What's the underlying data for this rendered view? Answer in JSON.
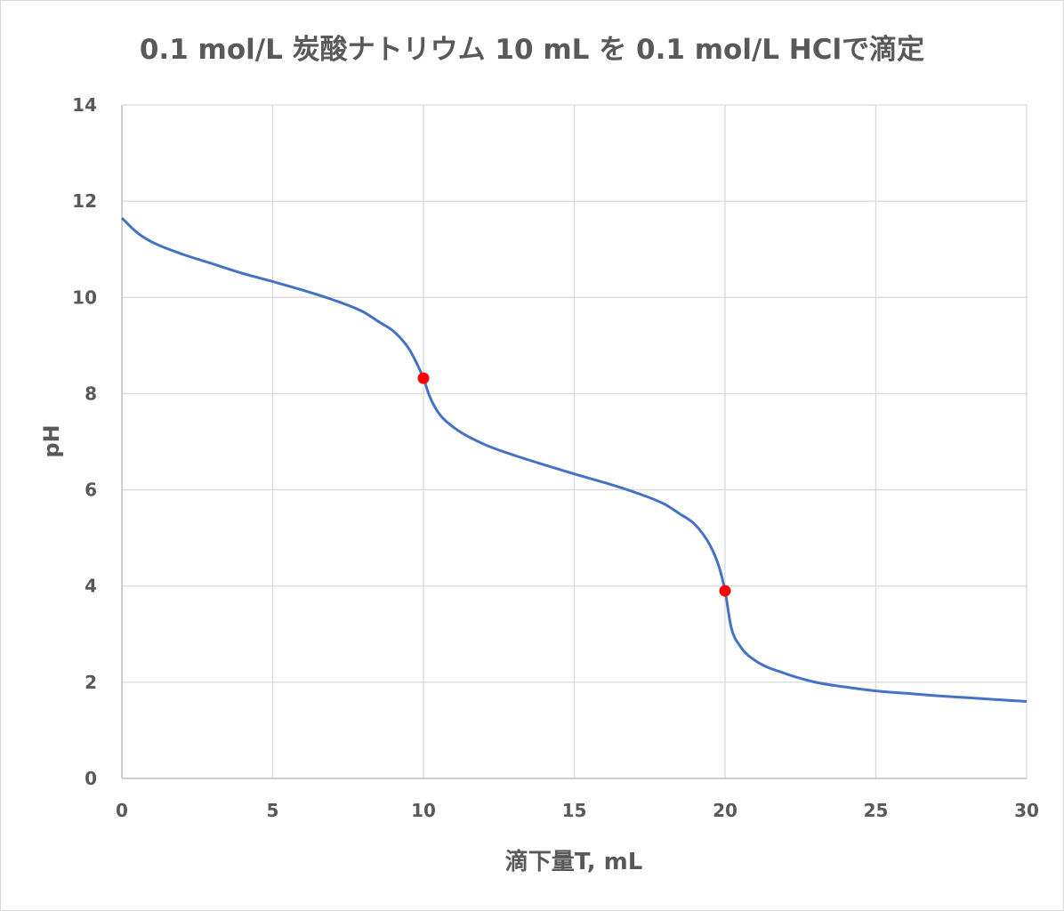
{
  "chart_data": {
    "type": "line",
    "title": "0.1 mol/L 炭酸ナトリウム 10 mL を 0.1 mol/L HClで滴定",
    "xlabel": "滴下量T, mL",
    "ylabel": "pH",
    "xlim": [
      0,
      30
    ],
    "ylim": [
      0,
      14
    ],
    "xticks": [
      0,
      5,
      10,
      15,
      20,
      25,
      30
    ],
    "yticks": [
      0,
      2,
      4,
      6,
      8,
      10,
      12,
      14
    ],
    "grid": true,
    "legend": "none",
    "series": [
      {
        "color": "#4472c4",
        "points": [
          [
            0,
            11.65
          ],
          [
            0.5,
            11.35
          ],
          [
            1,
            11.15
          ],
          [
            2,
            10.9
          ],
          [
            3,
            10.7
          ],
          [
            4,
            10.5
          ],
          [
            5,
            10.33
          ],
          [
            6,
            10.15
          ],
          [
            7,
            9.95
          ],
          [
            8,
            9.7
          ],
          [
            8.5,
            9.5
          ],
          [
            9,
            9.3
          ],
          [
            9.5,
            8.95
          ],
          [
            9.8,
            8.6
          ],
          [
            10,
            8.32
          ],
          [
            10.2,
            7.95
          ],
          [
            10.5,
            7.6
          ],
          [
            11,
            7.3
          ],
          [
            12,
            6.95
          ],
          [
            13,
            6.72
          ],
          [
            14,
            6.52
          ],
          [
            15,
            6.33
          ],
          [
            16,
            6.15
          ],
          [
            17,
            5.95
          ],
          [
            18,
            5.7
          ],
          [
            18.5,
            5.5
          ],
          [
            19,
            5.28
          ],
          [
            19.5,
            4.85
          ],
          [
            19.8,
            4.4
          ],
          [
            20,
            3.9
          ],
          [
            20.2,
            3.15
          ],
          [
            20.5,
            2.75
          ],
          [
            21,
            2.45
          ],
          [
            22,
            2.18
          ],
          [
            23,
            2.0
          ],
          [
            24,
            1.9
          ],
          [
            25,
            1.82
          ],
          [
            26,
            1.77
          ],
          [
            27,
            1.72
          ],
          [
            28,
            1.68
          ],
          [
            29,
            1.64
          ],
          [
            30,
            1.6
          ]
        ]
      }
    ],
    "markers": [
      {
        "x": 10,
        "y": 8.32,
        "color": "#ff0000"
      },
      {
        "x": 20,
        "y": 3.9,
        "color": "#ff0000"
      }
    ]
  }
}
